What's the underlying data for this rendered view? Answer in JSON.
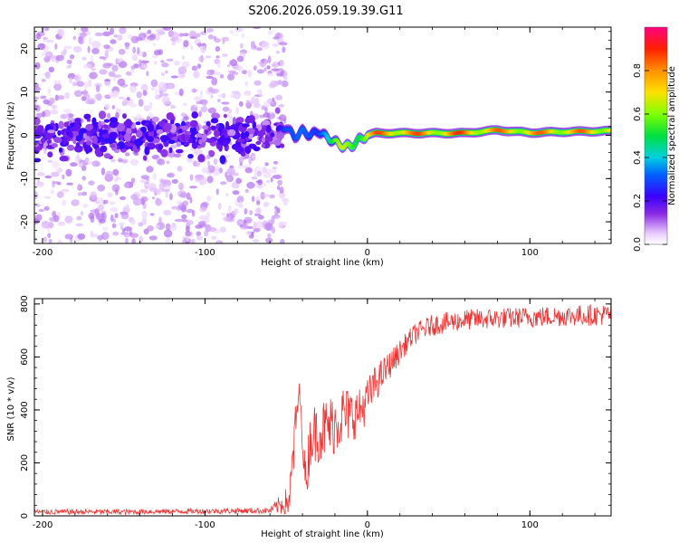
{
  "title": "S206.2026.059.19.39.G11",
  "chart_data": [
    {
      "type": "heatmap",
      "name": "spectrogram",
      "xlabel": "Height of straight line (km)",
      "ylabel": "Frequency (Hz)",
      "xlim": [
        -205,
        150
      ],
      "ylim": [
        -25,
        25
      ],
      "xticks": [
        -200,
        -100,
        0,
        100
      ],
      "yticks": [
        -20,
        -10,
        0,
        10,
        20
      ],
      "colorbar": {
        "label": "Normalized spectral amplitude",
        "range": [
          0,
          1
        ],
        "ticks": [
          0.0,
          0.2,
          0.4,
          0.6,
          0.8
        ],
        "tick_labels": [
          "0.0",
          "0.2",
          "0.4",
          "0.6",
          "0.8"
        ]
      },
      "ridge": {
        "x": [
          -55,
          -50,
          -45,
          -40,
          -35,
          -30,
          -25,
          -20,
          -15,
          -10,
          -5,
          0,
          5,
          10,
          20,
          40,
          60,
          80,
          100,
          120,
          150
        ],
        "freq": [
          1.0,
          2.0,
          -0.5,
          1.0,
          0.0,
          1.0,
          -0.5,
          -1.5,
          -2.5,
          -2.5,
          -1.0,
          0.0,
          0.5,
          0.5,
          0.5,
          0.5,
          0.5,
          1.2,
          0.6,
          0.8,
          1.0
        ],
        "amplitude": [
          0.3,
          0.35,
          0.3,
          0.35,
          0.4,
          0.4,
          0.45,
          0.55,
          0.7,
          0.75,
          0.7,
          0.75,
          0.85,
          0.9,
          0.9,
          0.85,
          0.9,
          0.85,
          0.85,
          0.85,
          0.85
        ]
      },
      "noise_region": {
        "x_range": [
          -205,
          -55
        ],
        "band_center_hz": 0,
        "band_width_hz": 4,
        "typical_amplitude": 0.1
      }
    },
    {
      "type": "line",
      "name": "snr",
      "xlabel": "Height of straight line (km)",
      "ylabel": "SNR (10 * v/v)",
      "xlim": [
        -205,
        150
      ],
      "ylim": [
        0,
        820
      ],
      "xticks": [
        -200,
        -100,
        0,
        100
      ],
      "yticks": [
        0,
        200,
        400,
        600,
        800
      ],
      "series": [
        {
          "name": "SNR",
          "color": "#ee3333",
          "x": [
            -205,
            -150,
            -100,
            -60,
            -48,
            -45,
            -42,
            -38,
            -35,
            -30,
            -25,
            -20,
            -15,
            -10,
            -5,
            0,
            5,
            10,
            15,
            20,
            25,
            30,
            40,
            50,
            60,
            80,
            100,
            120,
            150
          ],
          "y": [
            15,
            15,
            18,
            20,
            60,
            280,
            480,
            120,
            300,
            320,
            330,
            350,
            380,
            380,
            390,
            440,
            500,
            540,
            580,
            620,
            660,
            690,
            720,
            730,
            740,
            745,
            750,
            755,
            760
          ],
          "noise": [
            10,
            10,
            10,
            12,
            60,
            120,
            30,
            90,
            110,
            120,
            120,
            120,
            120,
            100,
            90,
            80,
            70,
            60,
            50,
            45,
            40,
            40,
            40,
            40,
            40,
            40,
            40,
            40,
            40
          ]
        }
      ]
    }
  ]
}
